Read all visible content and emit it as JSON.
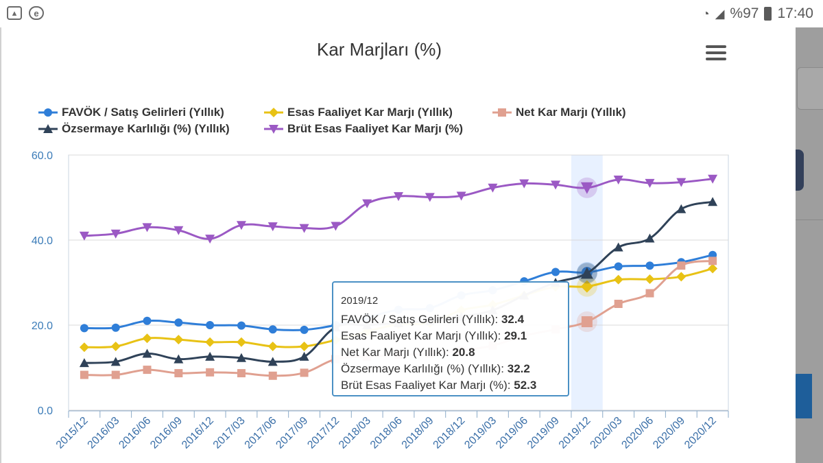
{
  "status_bar": {
    "battery": "%97",
    "time": "17:40",
    "icons": [
      "image-icon",
      "browser-icon",
      "wifi-icon",
      "signal-icon",
      "battery-icon"
    ]
  },
  "chart_data": {
    "type": "line",
    "title": "Kar Marjları (%)",
    "xlabel": "",
    "ylabel": "",
    "ylim": [
      0,
      60
    ],
    "yticks": [
      "0.0",
      "20.0",
      "40.0",
      "60.0"
    ],
    "grid": true,
    "legend_position": "top",
    "categories": [
      "2015/12",
      "2016/03",
      "2016/06",
      "2016/09",
      "2016/12",
      "2017/03",
      "2017/06",
      "2017/09",
      "2017/12",
      "2018/03",
      "2018/06",
      "2018/09",
      "2018/12",
      "2019/03",
      "2019/06",
      "2019/09",
      "2019/12",
      "2020/03",
      "2020/06",
      "2020/09",
      "2020/12"
    ],
    "highlight_index": 16,
    "series": [
      {
        "name": "FAVÖK / Satış Gelirleri (Yıllık)",
        "color": "#2f7ed8",
        "marker": "circle",
        "values": [
          19.3,
          19.4,
          21.0,
          20.6,
          20.0,
          19.9,
          19.0,
          18.9,
          20.0,
          21.8,
          23.6,
          24.0,
          27.0,
          28.2,
          30.3,
          32.5,
          32.4,
          33.8,
          34.0,
          34.8,
          36.5
        ]
      },
      {
        "name": "Esas Faaliyet Kar Marjı (Yıllık)",
        "color": "#e8c215",
        "marker": "diamond",
        "values": [
          14.8,
          15.0,
          16.9,
          16.6,
          16.0,
          16.0,
          15.0,
          15.0,
          16.5,
          18.5,
          20.2,
          20.5,
          23.5,
          24.8,
          27.0,
          29.0,
          29.1,
          30.7,
          30.8,
          31.4,
          33.3
        ]
      },
      {
        "name": "Net Kar Marjı (Yıllık)",
        "color": "#e0a090",
        "marker": "square",
        "values": [
          8.3,
          8.3,
          9.5,
          8.7,
          8.9,
          8.7,
          8.1,
          8.8,
          12.0,
          12.6,
          13.0,
          13.3,
          14.0,
          15.2,
          17.5,
          19.0,
          20.8,
          25.0,
          27.5,
          34.0,
          35.1
        ]
      },
      {
        "name": "Özsermaye Karlılığı (%) (Yıllık)",
        "color": "#2f4258",
        "marker": "triangle",
        "values": [
          11.1,
          11.4,
          13.3,
          12.0,
          12.6,
          12.3,
          11.4,
          12.6,
          19.5,
          20.0,
          20.5,
          21.0,
          22.0,
          23.5,
          27.0,
          30.0,
          32.2,
          38.3,
          40.4,
          47.3,
          49.0
        ]
      },
      {
        "name": "Brüt Esas Faaliyet Kar Marjı (%)",
        "color": "#9b59c4",
        "marker": "triangle-down",
        "values": [
          41.0,
          41.5,
          43.0,
          42.3,
          40.3,
          43.5,
          43.2,
          42.8,
          43.3,
          48.6,
          50.3,
          50.1,
          50.4,
          52.3,
          53.3,
          53.0,
          52.3,
          54.2,
          53.4,
          53.6,
          54.4
        ]
      }
    ],
    "tooltip": {
      "date": "2019/12",
      "rows": [
        {
          "label": "FAVÖK / Satış Gelirleri (Yıllık): ",
          "value": "32.4"
        },
        {
          "label": "Esas Faaliyet Kar Marjı (Yıllık): ",
          "value": "29.1"
        },
        {
          "label": "Net Kar Marjı (Yıllık): ",
          "value": "20.8"
        },
        {
          "label": "Özsermaye Karlılığı (%) (Yıllık): ",
          "value": "32.2"
        },
        {
          "label": "Brüt Esas Faaliyet Kar Marjı (%): ",
          "value": "52.3"
        }
      ]
    }
  }
}
